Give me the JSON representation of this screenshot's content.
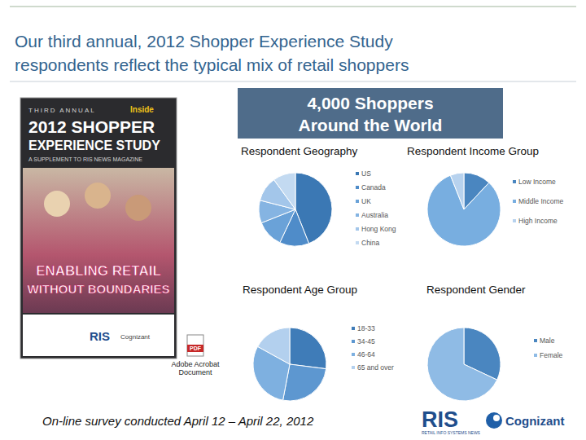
{
  "slide": {
    "title_lines": [
      "Our third annual, 2012 Shopper Experience Study",
      "respondents reflect the typical mix of retail shoppers"
    ],
    "banner_lines": [
      "4,000 Shoppers",
      "Around the World"
    ],
    "footnote": "On-line survey conducted April 12 – April 22, 2012",
    "icon_text": "PDF",
    "attachment_label": [
      "Adobe Acrobat",
      "Document"
    ],
    "logos": [
      "RIS",
      "RETAIL INFO SYSTEMS NEWS",
      "Cognizant"
    ],
    "cover": {
      "kicker": "THIRD ANNUAL",
      "title_lines": [
        "2012 SHOPPER",
        "EXPERIENCE STUDY"
      ],
      "subtitle": "A SUPPLEMENT TO RIS NEWS MAGAZINE",
      "inside": "Inside",
      "headline_lines": [
        "ENABLING RETAIL",
        "WITHOUT BOUNDARIES"
      ],
      "logos": [
        "RIS",
        "Cognizant"
      ]
    }
  },
  "chart_data": [
    {
      "type": "pie",
      "title": "Respondent Geography",
      "categories": [
        "US",
        "Canada",
        "UK",
        "Australia",
        "Hong Kong",
        "China"
      ],
      "values": [
        44,
        13,
        12,
        10,
        11,
        10
      ],
      "colors": [
        "#3b78b4",
        "#4f8cc9",
        "#6aa2d8",
        "#85b4e2",
        "#a3c6ea",
        "#c3daf1"
      ],
      "legend": "right"
    },
    {
      "type": "pie",
      "title": "Respondent Income Group",
      "categories": [
        "Low Income",
        "Middle Income",
        "High Income"
      ],
      "values": [
        12,
        82,
        6
      ],
      "colors": [
        "#4a86c0",
        "#78aee0",
        "#b7d2ee"
      ],
      "legend": "right"
    },
    {
      "type": "pie",
      "title": "Respondent Age Group",
      "categories": [
        "18-33",
        "34-45",
        "46-64",
        "65 and over"
      ],
      "values": [
        27,
        26,
        30,
        17
      ],
      "colors": [
        "#3f7cb8",
        "#5d97d0",
        "#7eb0e0",
        "#b3d0ee"
      ],
      "legend": "right"
    },
    {
      "type": "pie",
      "title": "Respondent Gender",
      "categories": [
        "Male",
        "Female"
      ],
      "values": [
        32,
        68
      ],
      "colors": [
        "#4a86c0",
        "#8fbbe5"
      ],
      "legend": "right"
    }
  ]
}
